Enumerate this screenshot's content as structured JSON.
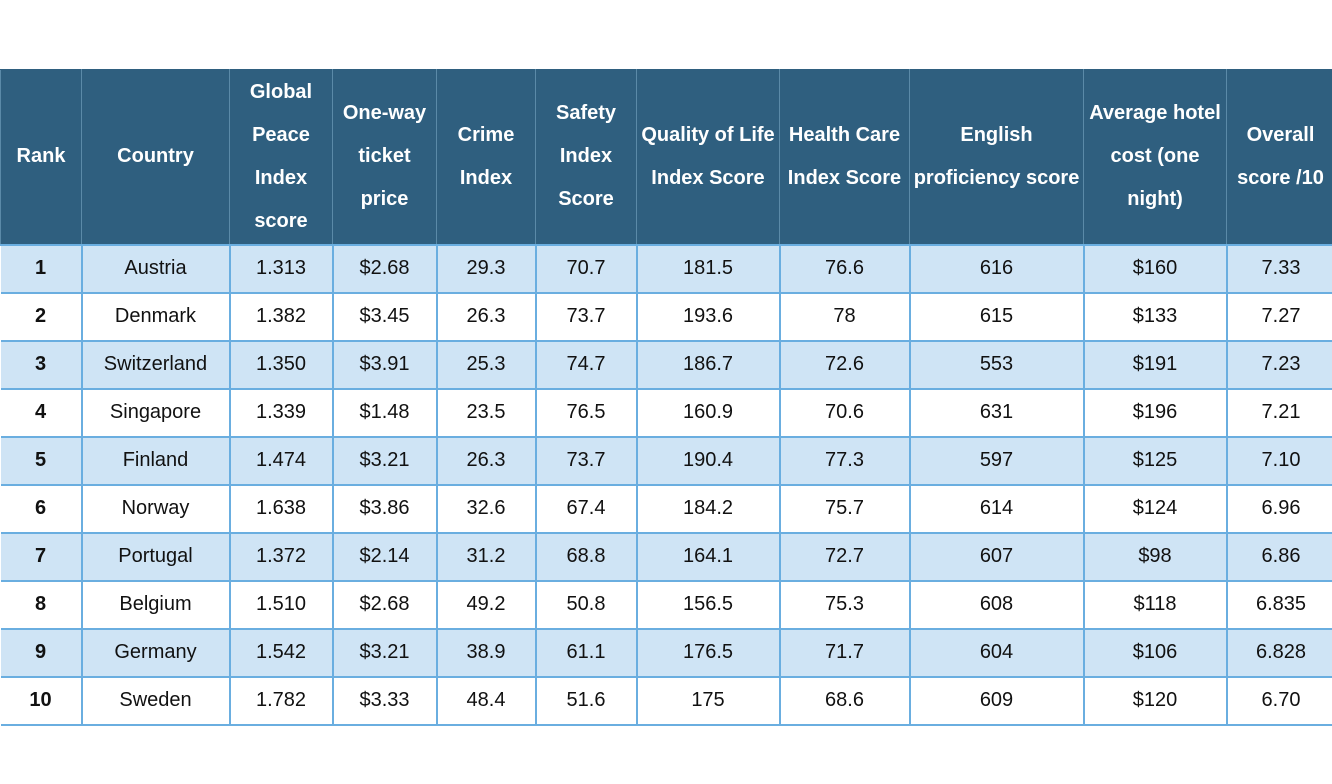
{
  "table": {
    "headers": [
      "Rank",
      "Country",
      "Global Peace Index score",
      "One-way ticket price",
      "Crime Index",
      "Safety Index Score",
      "Quality of Life Index Score",
      "Health Care Index Score",
      "English proficiency score",
      "Average hotel cost (one night)",
      "Overall score /10"
    ],
    "rows": [
      [
        "1",
        "Austria",
        "1.313",
        "$2.68",
        "29.3",
        "70.7",
        "181.5",
        "76.6",
        "616",
        "$160",
        "7.33"
      ],
      [
        "2",
        "Denmark",
        "1.382",
        "$3.45",
        "26.3",
        "73.7",
        "193.6",
        "78",
        "615",
        "$133",
        "7.27"
      ],
      [
        "3",
        "Switzerland",
        "1.350",
        "$3.91",
        "25.3",
        "74.7",
        "186.7",
        "72.6",
        "553",
        "$191",
        "7.23"
      ],
      [
        "4",
        "Singapore",
        "1.339",
        "$1.48",
        "23.5",
        "76.5",
        "160.9",
        "70.6",
        "631",
        "$196",
        "7.21"
      ],
      [
        "5",
        "Finland",
        "1.474",
        "$3.21",
        "26.3",
        "73.7",
        "190.4",
        "77.3",
        "597",
        "$125",
        "7.10"
      ],
      [
        "6",
        "Norway",
        "1.638",
        "$3.86",
        "32.6",
        "67.4",
        "184.2",
        "75.7",
        "614",
        "$124",
        "6.96"
      ],
      [
        "7",
        "Portugal",
        "1.372",
        "$2.14",
        "31.2",
        "68.8",
        "164.1",
        "72.7",
        "607",
        "$98",
        "6.86"
      ],
      [
        "8",
        "Belgium",
        "1.510",
        "$2.68",
        "49.2",
        "50.8",
        "156.5",
        "75.3",
        "608",
        "$118",
        "6.835"
      ],
      [
        "9",
        "Germany",
        "1.542",
        "$3.21",
        "38.9",
        "61.1",
        "176.5",
        "71.7",
        "604",
        "$106",
        "6.828"
      ],
      [
        "10",
        "Sweden",
        "1.782",
        "$3.33",
        "48.4",
        "51.6",
        "175",
        "68.6",
        "609",
        "$120",
        "6.70"
      ]
    ]
  },
  "colors": {
    "header_bg": "#2f5f7f",
    "row_alt_bg": "#cfe4f5",
    "border": "#6aaee0"
  }
}
